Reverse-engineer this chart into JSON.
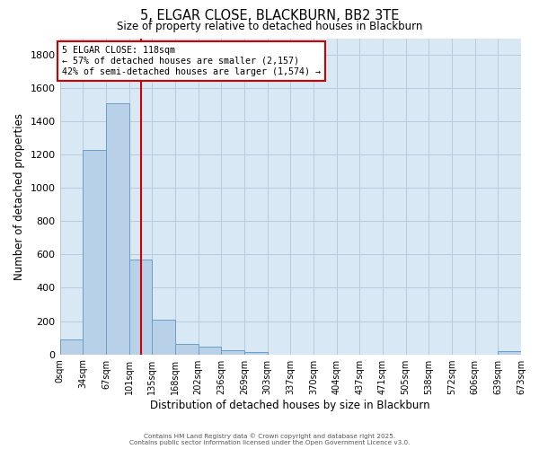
{
  "title": "5, ELGAR CLOSE, BLACKBURN, BB2 3TE",
  "subtitle": "Size of property relative to detached houses in Blackburn",
  "xlabel": "Distribution of detached houses by size in Blackburn",
  "ylabel": "Number of detached properties",
  "bar_color": "#b8d0e8",
  "bar_edge_color": "#6a9fc8",
  "background_color": "#d8e8f4",
  "grid_color": "#b8cce0",
  "annotation_box_color": "#cc0000",
  "vline_color": "#cc0000",
  "bin_width": 33.5,
  "bin_starts": [
    0,
    33.5,
    67,
    100.5,
    134,
    167.5,
    201,
    234.5,
    268,
    301.5,
    335,
    368.5,
    402,
    435.5,
    469,
    502.5,
    536,
    569.5,
    603,
    636.5
  ],
  "bin_labels": [
    "0sqm",
    "34sqm",
    "67sqm",
    "101sqm",
    "135sqm",
    "168sqm",
    "202sqm",
    "236sqm",
    "269sqm",
    "303sqm",
    "337sqm",
    "370sqm",
    "404sqm",
    "437sqm",
    "471sqm",
    "505sqm",
    "538sqm",
    "572sqm",
    "606sqm",
    "639sqm",
    "673sqm"
  ],
  "counts": [
    90,
    1230,
    1510,
    570,
    210,
    65,
    45,
    25,
    15,
    0,
    0,
    0,
    0,
    0,
    0,
    0,
    0,
    0,
    0,
    20
  ],
  "vline_x": 118,
  "ylim": [
    0,
    1900
  ],
  "yticks": [
    0,
    200,
    400,
    600,
    800,
    1000,
    1200,
    1400,
    1600,
    1800
  ],
  "xmin": 0,
  "xmax": 670,
  "annotation_title": "5 ELGAR CLOSE: 118sqm",
  "annotation_line1": "← 57% of detached houses are smaller (2,157)",
  "annotation_line2": "42% of semi-detached houses are larger (1,574) →",
  "footer1": "Contains HM Land Registry data © Crown copyright and database right 2025.",
  "footer2": "Contains public sector information licensed under the Open Government Licence v3.0."
}
